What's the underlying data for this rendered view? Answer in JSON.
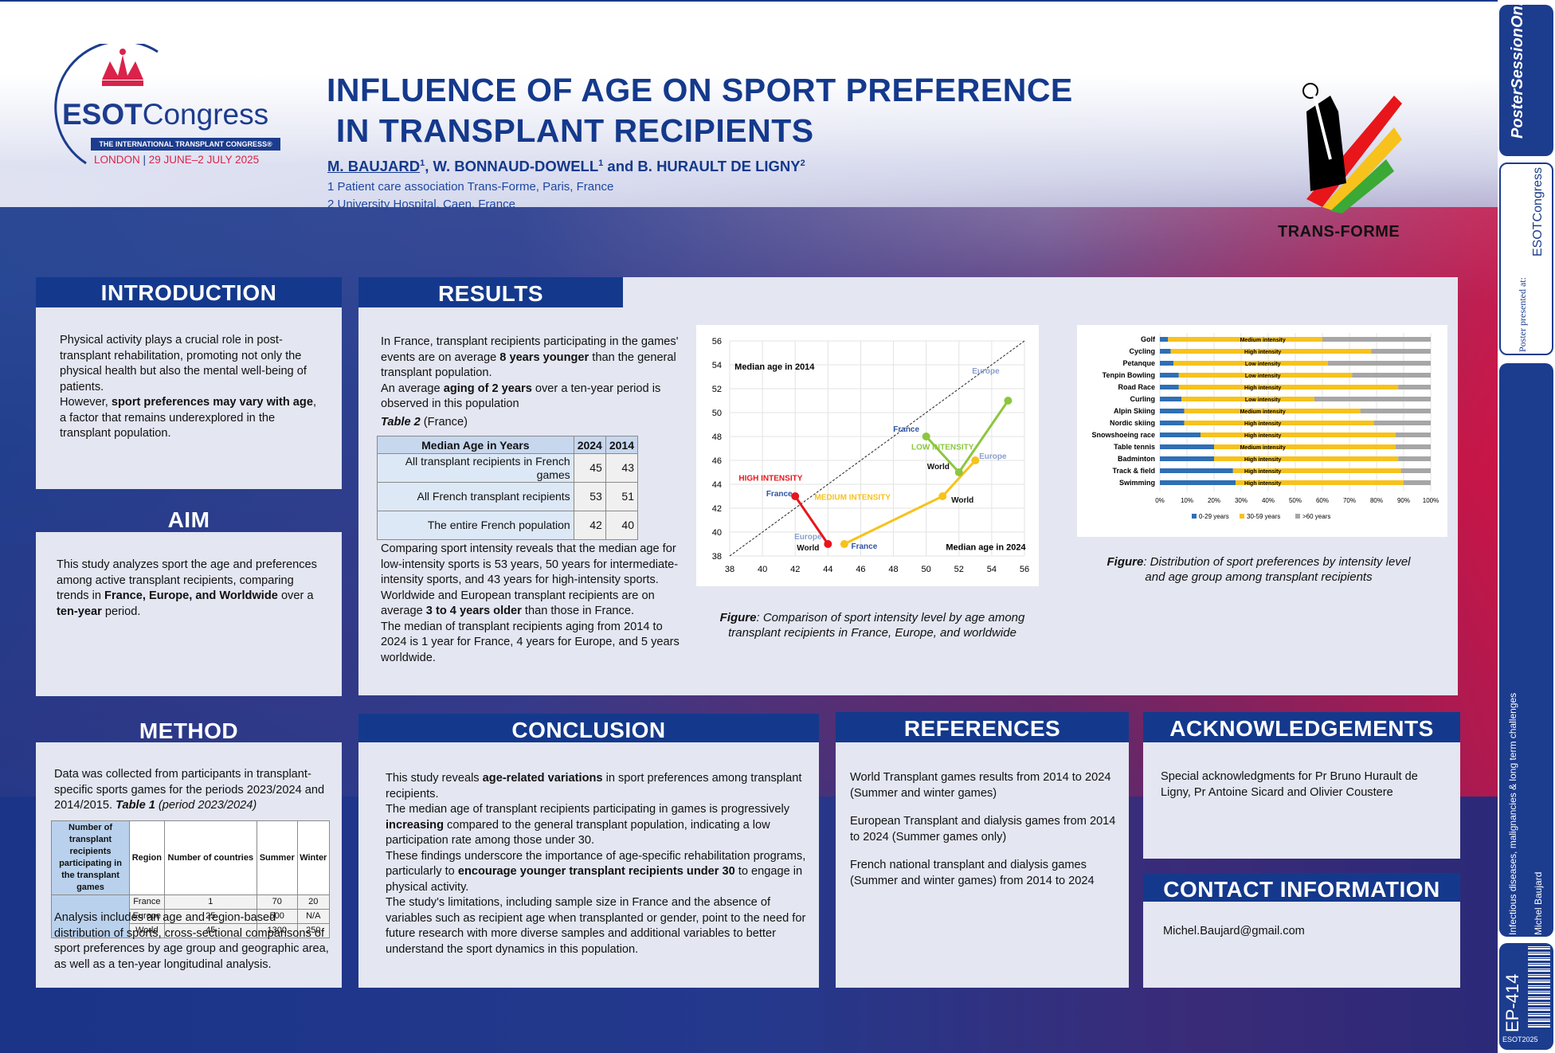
{
  "logo": {
    "name": "ESOTCongress",
    "esot": "ESOT",
    "congress": "Congress",
    "tagline": "THE INTERNATIONAL TRANSPLANT CONGRESS®",
    "city": "LONDON",
    "dates": "29 JUNE–2 JULY 2025"
  },
  "title": {
    "line1": "INFLUENCE OF AGE ON SPORT PREFERENCE",
    "line2": " IN TRANSPLANT RECIPIENTS"
  },
  "authors": {
    "first": "M. BAUJARD",
    "first_sup": "1",
    "rest": ", W. BONNAUD-DOWELL",
    "rest_sup": "1",
    "last": " and B. HURAULT DE LIGNY",
    "last_sup": "2"
  },
  "affiliations": [
    "1 Patient care association Trans-Forme, Paris, France",
    "2 University Hospital, Caen, France"
  ],
  "partner_logo": {
    "label": "TRANS-FORME"
  },
  "introduction": {
    "heading": "INTRODUCTION",
    "p1": "Physical activity plays a crucial role in post-transplant rehabilitation, promoting not only the physical health but also the mental well-being of patients.",
    "p2a": "However, ",
    "p2b": "sport preferences may vary with age",
    "p2c": ", a factor that remains underexplored in the transplant population."
  },
  "aim": {
    "heading": "AIM",
    "a": "This study analyzes sport the age and preferences among active transplant recipients, comparing trends in ",
    "b": "France, Europe, and Worldwide",
    "c": " over a ",
    "d": "ten-year",
    "e": " period."
  },
  "results": {
    "heading": "RESULTS",
    "p1a": "In France, transplant recipients participating in the games' events are on average ",
    "p1b": "8 years younger",
    "p1c": " than the general transplant population.",
    "p2a": "An average ",
    "p2b": "aging of 2 years",
    "p2c": " over a ten-year period is observed in this population",
    "table_caption_b": "Table 2",
    "table_caption_rest": " (France)",
    "table": {
      "headers": [
        "Median Age in Years",
        "2024",
        "2014"
      ],
      "rows": [
        [
          "All transplant recipients in French games",
          "45",
          "43"
        ],
        [
          "All French transplant recipients",
          "53",
          "51"
        ],
        [
          "The entire French population",
          "42",
          "40"
        ]
      ]
    },
    "p3": "Comparing sport intensity reveals that the median age for low-intensity sports is 53 years, 50 years for intermediate-intensity sports, and 43 years for high-intensity sports.",
    "p4a": "Worldwide and European transplant recipients are on average ",
    "p4b": "3 to 4 years older",
    "p4c": " than those in France.",
    "p5": "The median of transplant recipients aging from 2014 to 2024 is 1 year for France, 4 years for Europe, and 5 years worldwide.",
    "fig1_caption_b": "Figure",
    "fig1_caption": ": Comparison of sport intensity level by age among transplant recipients in France, Europe, and worldwide",
    "fig2_caption_b": "Figure",
    "fig2_caption": ": Distribution of sport preferences by intensity level and age group among transplant recipients"
  },
  "method": {
    "heading": "METHOD",
    "p1a": "Data was collected from participants in transplant-specific sports games for the periods 2023/2024 and 2014/2015. ",
    "p1b": "Table 1",
    "p1c": " (period 2023/2024)",
    "table": {
      "headers": [
        "Number of transplant recipients participating in the transplant games",
        "Region",
        "Number of countries",
        "Summer",
        "Winter"
      ],
      "rows": [
        [
          "France",
          "1",
          "70",
          "20"
        ],
        [
          "Europe",
          "25",
          "500",
          "N/A"
        ],
        [
          "World",
          "45",
          "1300",
          "250"
        ]
      ]
    },
    "p2": "Analysis includes an age and region-based distribution of sports, cross-sectional comparisons of sport preferences by age group and geographic area, as well as a ten-year longitudinal analysis."
  },
  "conclusion": {
    "heading": "CONCLUSION",
    "p1a": "This study reveals ",
    "p1b": "age-related variations",
    "p1c": " in sport preferences among transplant recipients.",
    "p2a": "The median age of transplant recipients participating in games is progressively ",
    "p2b": "increasing",
    "p2c": " compared to the general transplant population, indicating a low participation rate among those under 30.",
    "p3a": "These findings underscore the importance of age-specific rehabilitation programs, particularly to ",
    "p3b": "encourage younger transplant recipients under 30",
    "p3c": " to engage in physical activity.",
    "p4": "The study's limitations, including sample size in France and the absence of variables such as recipient age when transplanted or gender, point to the need for future research with more diverse samples and additional variables to better understand the sport dynamics in this population."
  },
  "references": {
    "heading": "REFERENCES",
    "items": [
      "World Transplant games results from 2014 to 2024 (Summer and winter games)",
      "European Transplant and dialysis games from 2014 to 2024 (Summer games only)",
      "French national transplant and dialysis games (Summer and winter games) from 2014 to 2024"
    ]
  },
  "acknowledgements": {
    "heading": "ACKNOWLEDGEMENTS",
    "text": "Special acknowledgments for Pr Bruno Hurault de Ligny, Pr Antoine Sicard and Olivier Coustere"
  },
  "contact": {
    "heading": "CONTACT INFORMATION",
    "email": "Michel.Baujard@gmail.com"
  },
  "sidebar": {
    "brand": "PosterSessionOnline",
    "presented": "Poster presented at:",
    "congress": "ESOTCongress",
    "topic": "Infectious diseases, malignancies & long term challenges",
    "author": "Michel Baujard",
    "code": "EP-414",
    "event": "ESOT2025"
  },
  "chart_data": [
    {
      "type": "line",
      "title": "",
      "xlabel": "",
      "ylabel": "",
      "xlim": [
        38,
        56
      ],
      "ylim": [
        38,
        56
      ],
      "grid": true,
      "annotations": [
        "Median age in 2014",
        "Median age in 2024",
        "HIGH INTENSITY",
        "MEDIUM INTENSITY",
        "LOW INTENSITY"
      ],
      "diagonal": "dashed y=x",
      "series": [
        {
          "name": "HIGH INTENSITY",
          "color": "#e8151b",
          "points": [
            {
              "label": "France",
              "x": 42,
              "y": 43
            },
            {
              "label": "World/Europe",
              "x": 44,
              "y": 39
            }
          ]
        },
        {
          "name": "MEDIUM INTENSITY",
          "color": "#f7c21b",
          "points": [
            {
              "label": "France",
              "x": 45,
              "y": 39
            },
            {
              "label": "World",
              "x": 51,
              "y": 43
            },
            {
              "label": "Europe",
              "x": 53,
              "y": 46
            }
          ]
        },
        {
          "name": "LOW INTENSITY",
          "color": "#8cc63f",
          "points": [
            {
              "label": "France",
              "x": 50,
              "y": 48
            },
            {
              "label": "World",
              "x": 52,
              "y": 45
            },
            {
              "label": "Europe",
              "x": 55,
              "y": 51
            }
          ]
        }
      ]
    },
    {
      "type": "bar",
      "stacked": true,
      "orientation": "horizontal",
      "xlim": [
        0,
        100
      ],
      "xticks": [
        "0%",
        "10%",
        "20%",
        "30%",
        "40%",
        "50%",
        "60%",
        "70%",
        "80%",
        "90%",
        "100%"
      ],
      "categories": [
        "Golf",
        "Cycling",
        "Petanque",
        "Tenpin Bowling",
        "Road Race",
        "Curling",
        "Alpin Skiing",
        "Nordic skiing",
        "Snowshoeing race",
        "Table tennis",
        "Badminton",
        "Track & field",
        "Swimming"
      ],
      "intensity_labels": [
        "Medium intensity",
        "High intensity",
        "Low intensity",
        "Low intensity",
        "High intensity",
        "Low intensity",
        "Medium intensity",
        "High intensity",
        "High intensity",
        "Medium intensity",
        "High intensity",
        "High intensity",
        "High intensity"
      ],
      "series": [
        {
          "name": "0-29 years",
          "color": "#2e6fb5",
          "values": [
            3,
            4,
            5,
            7,
            7,
            8,
            9,
            9,
            15,
            20,
            20,
            27,
            28
          ]
        },
        {
          "name": "30-59 years",
          "color": "#f7c21b",
          "values": [
            57,
            74,
            57,
            64,
            81,
            49,
            65,
            70,
            72,
            67,
            68,
            62,
            62
          ]
        },
        {
          "name": ">60 years",
          "color": "#a6a6a6",
          "values": [
            40,
            22,
            38,
            29,
            12,
            43,
            26,
            21,
            13,
            13,
            12,
            11,
            10
          ]
        }
      ]
    }
  ]
}
